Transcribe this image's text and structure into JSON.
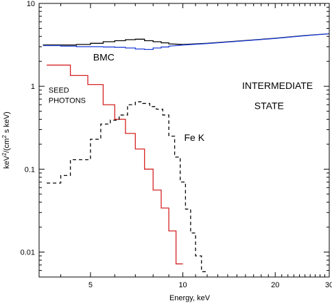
{
  "chart_data": {
    "type": "line",
    "title": "",
    "xlabel": "Energy, keV",
    "ylabel_parts": [
      "keV",
      "2",
      "/(cm",
      "2",
      " s keV)"
    ],
    "xlim": [
      3.4,
      30
    ],
    "ylim": [
      0.005,
      10
    ],
    "xscale": "log",
    "yscale": "log",
    "grid": false,
    "x_ticks_major": [
      5,
      10,
      20,
      30
    ],
    "x_ticks_minor": [
      4,
      6,
      7,
      8,
      9
    ],
    "y_ticks": [
      {
        "value": 0.01,
        "label": "0.01"
      },
      {
        "value": 0.1,
        "label": "0.1"
      },
      {
        "value": 1,
        "label": "1"
      },
      {
        "value": 10,
        "label": "10"
      }
    ],
    "annotations": [
      {
        "text": "BMC",
        "x": 5.1,
        "y": 2.05,
        "size": "lg"
      },
      {
        "text": "SEED",
        "x": 3.65,
        "y": 0.84,
        "size": "sm"
      },
      {
        "text": "PHOTONS",
        "x": 3.65,
        "y": 0.63,
        "size": "sm"
      },
      {
        "text": "Fe K",
        "x": 10.1,
        "y": 0.22,
        "size": "lg"
      },
      {
        "text": "INTERMEDIATE",
        "x": 15.6,
        "y": 0.93,
        "size": "lg"
      },
      {
        "text": "STATE",
        "x": 17.1,
        "y": 0.53,
        "size": "lg"
      }
    ],
    "series": [
      {
        "color": "#000000",
        "style": "solid",
        "step": true,
        "points": [
          [
            3.5,
            3.15
          ],
          [
            4.0,
            3.15
          ],
          [
            4.5,
            3.2
          ],
          [
            5.0,
            3.3
          ],
          [
            5.5,
            3.45
          ],
          [
            6.0,
            3.55
          ],
          [
            6.5,
            3.65
          ],
          [
            7.0,
            3.7
          ],
          [
            7.5,
            3.55
          ],
          [
            8.0,
            3.45
          ],
          [
            8.5,
            3.35
          ],
          [
            9.0,
            3.25
          ],
          [
            10.0,
            3.2
          ],
          [
            12.0,
            3.3
          ],
          [
            15.0,
            3.5
          ],
          [
            20.0,
            3.8
          ],
          [
            25.0,
            4.1
          ],
          [
            30.0,
            4.3
          ]
        ]
      },
      {
        "color": "#1f3fd6",
        "style": "solid",
        "step": true,
        "points": [
          [
            3.5,
            3.1
          ],
          [
            4.0,
            3.05
          ],
          [
            4.5,
            3.0
          ],
          [
            5.0,
            3.0
          ],
          [
            5.5,
            2.98
          ],
          [
            6.0,
            2.95
          ],
          [
            6.5,
            2.9
          ],
          [
            7.0,
            2.82
          ],
          [
            7.5,
            2.78
          ],
          [
            8.0,
            2.9
          ],
          [
            8.5,
            2.98
          ],
          [
            9.0,
            3.05
          ],
          [
            10.0,
            3.15
          ],
          [
            12.0,
            3.28
          ],
          [
            15.0,
            3.48
          ],
          [
            20.0,
            3.78
          ],
          [
            25.0,
            4.08
          ],
          [
            30.0,
            4.3
          ]
        ]
      },
      {
        "color": "#d62020",
        "style": "solid",
        "step": true,
        "edges": [
          3.6,
          4.3,
          4.9,
          5.5,
          6.0,
          6.5,
          7.0,
          7.5,
          8.0,
          8.5,
          9.0,
          9.5,
          10.0
        ],
        "values": [
          1.8,
          1.35,
          1.05,
          0.6,
          0.4,
          0.27,
          0.175,
          0.1,
          0.056,
          0.034,
          0.018,
          0.0072
        ]
      },
      {
        "color": "#000000",
        "style": "dashed",
        "step": true,
        "edges": [
          3.6,
          4.0,
          4.3,
          4.6,
          5.0,
          5.4,
          5.8,
          6.2,
          6.6,
          7.0,
          7.4,
          7.8,
          8.2,
          8.6,
          9.0,
          9.4,
          9.8,
          10.2,
          10.6,
          11.0,
          11.5,
          12.0
        ],
        "values": [
          0.068,
          0.084,
          0.13,
          0.13,
          0.23,
          0.35,
          0.39,
          0.45,
          0.6,
          0.65,
          0.62,
          0.57,
          0.53,
          0.45,
          0.25,
          0.14,
          0.07,
          0.033,
          0.017,
          0.009,
          0.0058
        ]
      }
    ]
  }
}
